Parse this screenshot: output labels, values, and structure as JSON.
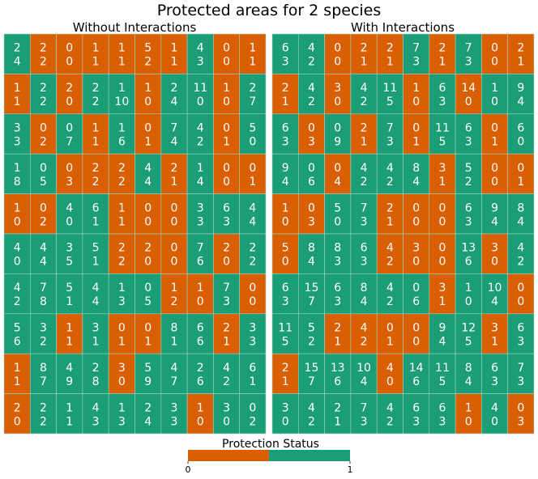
{
  "chart_data": {
    "type": "heatmap",
    "title": "Protected areas for 2 species",
    "colors": {
      "0": "#d95f02",
      "1": "#1b9e77",
      "grid": "#9fd4c2"
    },
    "legend": {
      "title": "Protection Status",
      "ticks": [
        "0",
        "1"
      ],
      "placement": "bottom-center"
    },
    "panels": [
      {
        "title": "Without Interactions",
        "status": [
          [
            1,
            0,
            0,
            0,
            0,
            0,
            0,
            1,
            0,
            0
          ],
          [
            0,
            1,
            0,
            1,
            1,
            0,
            1,
            1,
            0,
            1
          ],
          [
            1,
            0,
            1,
            0,
            1,
            0,
            1,
            1,
            0,
            1
          ],
          [
            1,
            1,
            0,
            0,
            0,
            1,
            0,
            1,
            0,
            0
          ],
          [
            0,
            0,
            1,
            1,
            0,
            0,
            0,
            1,
            1,
            1
          ],
          [
            1,
            1,
            1,
            1,
            0,
            0,
            0,
            1,
            0,
            1
          ],
          [
            1,
            1,
            1,
            1,
            1,
            1,
            0,
            0,
            1,
            0
          ],
          [
            1,
            1,
            0,
            1,
            0,
            0,
            1,
            1,
            0,
            1
          ],
          [
            0,
            1,
            1,
            1,
            0,
            1,
            1,
            1,
            1,
            1
          ],
          [
            0,
            1,
            1,
            1,
            1,
            1,
            1,
            0,
            1,
            1
          ]
        ],
        "top": [
          [
            2,
            2,
            0,
            1,
            1,
            5,
            1,
            4,
            0,
            1
          ],
          [
            1,
            2,
            2,
            2,
            1,
            1,
            2,
            11,
            1,
            2
          ],
          [
            3,
            0,
            0,
            1,
            1,
            0,
            7,
            4,
            0,
            5
          ],
          [
            1,
            0,
            0,
            2,
            2,
            4,
            2,
            1,
            0,
            0
          ],
          [
            1,
            0,
            4,
            6,
            1,
            0,
            0,
            3,
            6,
            4
          ],
          [
            4,
            4,
            3,
            5,
            2,
            2,
            0,
            7,
            2,
            2
          ],
          [
            4,
            7,
            5,
            4,
            1,
            0,
            1,
            1,
            7,
            0
          ],
          [
            5,
            3,
            1,
            3,
            0,
            0,
            8,
            6,
            2,
            3
          ],
          [
            1,
            8,
            4,
            2,
            3,
            5,
            4,
            2,
            4,
            6
          ],
          [
            2,
            2,
            1,
            4,
            1,
            2,
            3,
            1,
            3,
            0
          ]
        ],
        "bottom": [
          [
            4,
            2,
            0,
            1,
            1,
            2,
            1,
            3,
            0,
            1
          ],
          [
            1,
            2,
            0,
            2,
            10,
            0,
            4,
            0,
            0,
            7
          ],
          [
            3,
            2,
            7,
            1,
            6,
            1,
            4,
            2,
            1,
            0
          ],
          [
            8,
            5,
            3,
            2,
            2,
            4,
            1,
            4,
            0,
            1
          ],
          [
            0,
            2,
            0,
            1,
            1,
            0,
            0,
            3,
            3,
            4
          ],
          [
            0,
            4,
            5,
            1,
            2,
            0,
            0,
            6,
            0,
            2
          ],
          [
            2,
            8,
            1,
            4,
            3,
            5,
            2,
            0,
            3,
            0
          ],
          [
            6,
            2,
            1,
            1,
            1,
            1,
            1,
            6,
            1,
            3
          ],
          [
            1,
            7,
            9,
            8,
            0,
            9,
            7,
            6,
            2,
            1
          ],
          [
            0,
            2,
            1,
            3,
            3,
            4,
            3,
            0,
            0,
            2
          ]
        ]
      },
      {
        "title": "With Interactions",
        "status": [
          [
            1,
            1,
            0,
            0,
            0,
            1,
            0,
            1,
            0,
            0
          ],
          [
            0,
            1,
            0,
            1,
            1,
            0,
            1,
            0,
            1,
            1
          ],
          [
            1,
            0,
            1,
            0,
            1,
            0,
            1,
            1,
            0,
            1
          ],
          [
            1,
            1,
            0,
            1,
            1,
            1,
            0,
            1,
            0,
            0
          ],
          [
            0,
            0,
            1,
            1,
            0,
            0,
            0,
            1,
            1,
            1
          ],
          [
            0,
            1,
            1,
            1,
            0,
            0,
            0,
            1,
            0,
            1
          ],
          [
            1,
            1,
            1,
            1,
            1,
            1,
            0,
            1,
            1,
            0
          ],
          [
            1,
            1,
            0,
            0,
            0,
            0,
            1,
            1,
            0,
            1
          ],
          [
            0,
            1,
            1,
            1,
            0,
            1,
            1,
            1,
            1,
            1
          ],
          [
            1,
            1,
            1,
            1,
            1,
            1,
            1,
            0,
            1,
            0
          ]
        ],
        "top": [
          [
            6,
            4,
            0,
            2,
            2,
            7,
            2,
            7,
            0,
            2
          ],
          [
            2,
            4,
            3,
            4,
            11,
            1,
            6,
            14,
            1,
            9
          ],
          [
            6,
            0,
            0,
            2,
            7,
            0,
            11,
            6,
            0,
            6
          ],
          [
            9,
            0,
            0,
            4,
            4,
            8,
            3,
            5,
            0,
            0
          ],
          [
            1,
            0,
            5,
            7,
            2,
            0,
            0,
            6,
            9,
            8
          ],
          [
            5,
            8,
            8,
            6,
            4,
            3,
            0,
            13,
            3,
            4
          ],
          [
            6,
            15,
            6,
            8,
            4,
            0,
            3,
            1,
            10,
            0
          ],
          [
            11,
            5,
            2,
            4,
            0,
            0,
            9,
            12,
            3,
            6
          ],
          [
            2,
            15,
            13,
            10,
            4,
            14,
            11,
            8,
            6,
            7
          ],
          [
            3,
            4,
            2,
            7,
            4,
            6,
            6,
            1,
            4,
            0
          ]
        ],
        "bottom": [
          [
            3,
            2,
            0,
            1,
            1,
            3,
            1,
            3,
            0,
            1
          ],
          [
            1,
            2,
            0,
            2,
            5,
            0,
            3,
            0,
            0,
            4
          ],
          [
            3,
            3,
            9,
            1,
            3,
            1,
            5,
            3,
            1,
            0
          ],
          [
            4,
            6,
            4,
            2,
            2,
            4,
            1,
            2,
            0,
            1
          ],
          [
            0,
            3,
            0,
            3,
            1,
            0,
            0,
            3,
            4,
            4
          ],
          [
            0,
            4,
            3,
            3,
            2,
            0,
            0,
            6,
            0,
            2
          ],
          [
            3,
            7,
            3,
            4,
            2,
            6,
            1,
            0,
            4,
            0
          ],
          [
            5,
            2,
            1,
            2,
            1,
            0,
            4,
            5,
            1,
            3
          ],
          [
            1,
            7,
            6,
            4,
            0,
            6,
            5,
            4,
            3,
            3
          ],
          [
            0,
            2,
            1,
            3,
            2,
            3,
            3,
            0,
            0,
            3
          ]
        ]
      }
    ]
  }
}
